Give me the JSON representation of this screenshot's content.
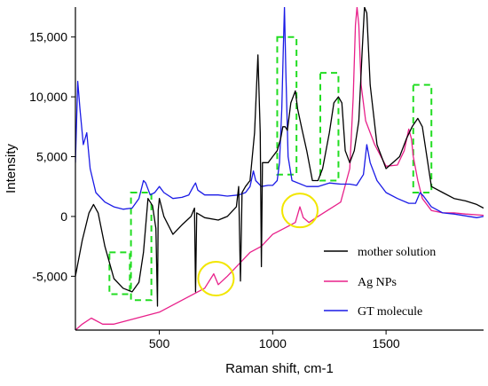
{
  "chart_data": {
    "type": "line",
    "xlabel": "Raman shift, cm-1",
    "ylabel": "Intensity",
    "xlim": [
      130,
      1930
    ],
    "ylim": [
      -9500,
      17500
    ],
    "x_ticks": [
      500,
      1000,
      1500
    ],
    "x_tick_labels": [
      "500",
      "1000",
      "1500"
    ],
    "y_ticks": [
      -5000,
      0,
      5000,
      10000,
      15000
    ],
    "y_tick_labels": [
      "-5,000",
      "0",
      "5,000",
      "10,000",
      "15,000"
    ],
    "legend_position": "bottom-right",
    "series": [
      {
        "name": "mother solution",
        "color": "#000000",
        "points": [
          [
            130,
            -5000
          ],
          [
            160,
            -2000
          ],
          [
            190,
            300
          ],
          [
            210,
            1000
          ],
          [
            230,
            300
          ],
          [
            260,
            -2500
          ],
          [
            300,
            -5200
          ],
          [
            340,
            -6000
          ],
          [
            380,
            -6300
          ],
          [
            410,
            -5500
          ],
          [
            430,
            -3000
          ],
          [
            450,
            1500
          ],
          [
            470,
            900
          ],
          [
            485,
            -1000
          ],
          [
            492,
            -7500
          ],
          [
            495,
            500
          ],
          [
            500,
            1500
          ],
          [
            520,
            0
          ],
          [
            560,
            -1500
          ],
          [
            600,
            -700
          ],
          [
            640,
            0
          ],
          [
            655,
            700
          ],
          [
            660,
            -6300
          ],
          [
            665,
            300
          ],
          [
            700,
            -100
          ],
          [
            760,
            -300
          ],
          [
            800,
            0
          ],
          [
            840,
            800
          ],
          [
            850,
            2500
          ],
          [
            858,
            -5400
          ],
          [
            865,
            2000
          ],
          [
            880,
            2500
          ],
          [
            900,
            3000
          ],
          [
            920,
            7000
          ],
          [
            935,
            13500
          ],
          [
            945,
            7000
          ],
          [
            950,
            -4200
          ],
          [
            955,
            4500
          ],
          [
            980,
            4500
          ],
          [
            1000,
            5000
          ],
          [
            1020,
            5500
          ],
          [
            1035,
            6500
          ],
          [
            1045,
            7500
          ],
          [
            1055,
            7500
          ],
          [
            1065,
            7200
          ],
          [
            1080,
            9500
          ],
          [
            1100,
            10500
          ],
          [
            1110,
            9000
          ],
          [
            1130,
            7200
          ],
          [
            1150,
            5500
          ],
          [
            1175,
            3000
          ],
          [
            1200,
            3000
          ],
          [
            1220,
            4000
          ],
          [
            1250,
            7000
          ],
          [
            1270,
            9500
          ],
          [
            1290,
            10000
          ],
          [
            1305,
            9500
          ],
          [
            1320,
            5500
          ],
          [
            1340,
            4500
          ],
          [
            1360,
            5500
          ],
          [
            1380,
            8000
          ],
          [
            1395,
            14000
          ],
          [
            1405,
            17500
          ],
          [
            1415,
            17000
          ],
          [
            1430,
            11000
          ],
          [
            1460,
            6000
          ],
          [
            1500,
            4000
          ],
          [
            1530,
            4500
          ],
          [
            1560,
            5000
          ],
          [
            1590,
            6500
          ],
          [
            1615,
            7500
          ],
          [
            1640,
            8200
          ],
          [
            1660,
            7500
          ],
          [
            1680,
            5000
          ],
          [
            1700,
            2500
          ],
          [
            1750,
            2000
          ],
          [
            1800,
            1500
          ],
          [
            1850,
            1300
          ],
          [
            1900,
            1000
          ],
          [
            1930,
            700
          ]
        ]
      },
      {
        "name": "Ag NPs",
        "color": "#e8208a",
        "points": [
          [
            130,
            -9500
          ],
          [
            160,
            -9000
          ],
          [
            200,
            -8500
          ],
          [
            250,
            -9000
          ],
          [
            300,
            -9000
          ],
          [
            400,
            -8500
          ],
          [
            500,
            -8000
          ],
          [
            600,
            -7000
          ],
          [
            700,
            -6000
          ],
          [
            740,
            -4800
          ],
          [
            760,
            -5700
          ],
          [
            800,
            -5000
          ],
          [
            850,
            -4000
          ],
          [
            900,
            -3000
          ],
          [
            950,
            -2500
          ],
          [
            1000,
            -1500
          ],
          [
            1050,
            -1000
          ],
          [
            1100,
            -500
          ],
          [
            1120,
            800
          ],
          [
            1135,
            -100
          ],
          [
            1160,
            -500
          ],
          [
            1200,
            0
          ],
          [
            1250,
            600
          ],
          [
            1300,
            1200
          ],
          [
            1340,
            4000
          ],
          [
            1355,
            10000
          ],
          [
            1365,
            16000
          ],
          [
            1372,
            17500
          ],
          [
            1380,
            16000
          ],
          [
            1390,
            11000
          ],
          [
            1410,
            8000
          ],
          [
            1450,
            6000
          ],
          [
            1500,
            4200
          ],
          [
            1550,
            4300
          ],
          [
            1580,
            5500
          ],
          [
            1600,
            7300
          ],
          [
            1612,
            6500
          ],
          [
            1620,
            5000
          ],
          [
            1640,
            3000
          ],
          [
            1660,
            1500
          ],
          [
            1700,
            500
          ],
          [
            1750,
            300
          ],
          [
            1800,
            300
          ],
          [
            1850,
            200
          ],
          [
            1930,
            100
          ]
        ]
      },
      {
        "name": "GT molecule",
        "color": "#1a1ae6",
        "points": [
          [
            130,
            4500
          ],
          [
            140,
            11300
          ],
          [
            150,
            9000
          ],
          [
            165,
            6000
          ],
          [
            180,
            7000
          ],
          [
            195,
            4000
          ],
          [
            220,
            2000
          ],
          [
            260,
            1200
          ],
          [
            300,
            800
          ],
          [
            340,
            600
          ],
          [
            380,
            700
          ],
          [
            410,
            1500
          ],
          [
            430,
            3000
          ],
          [
            440,
            2800
          ],
          [
            460,
            1800
          ],
          [
            480,
            2000
          ],
          [
            500,
            2500
          ],
          [
            520,
            2000
          ],
          [
            560,
            1500
          ],
          [
            600,
            1600
          ],
          [
            630,
            1800
          ],
          [
            650,
            2500
          ],
          [
            660,
            2800
          ],
          [
            670,
            2200
          ],
          [
            700,
            1800
          ],
          [
            760,
            1800
          ],
          [
            800,
            1700
          ],
          [
            850,
            1800
          ],
          [
            880,
            2000
          ],
          [
            900,
            2500
          ],
          [
            915,
            3800
          ],
          [
            925,
            3000
          ],
          [
            950,
            2500
          ],
          [
            980,
            2600
          ],
          [
            1000,
            2600
          ],
          [
            1020,
            3000
          ],
          [
            1030,
            4500
          ],
          [
            1040,
            9000
          ],
          [
            1047,
            14000
          ],
          [
            1052,
            17500
          ],
          [
            1058,
            12000
          ],
          [
            1068,
            5000
          ],
          [
            1085,
            3000
          ],
          [
            1150,
            2500
          ],
          [
            1200,
            2500
          ],
          [
            1250,
            2800
          ],
          [
            1300,
            2700
          ],
          [
            1340,
            2700
          ],
          [
            1370,
            2600
          ],
          [
            1400,
            3500
          ],
          [
            1415,
            6000
          ],
          [
            1430,
            4500
          ],
          [
            1460,
            3000
          ],
          [
            1500,
            2000
          ],
          [
            1550,
            1500
          ],
          [
            1600,
            1100
          ],
          [
            1630,
            1100
          ],
          [
            1650,
            2000
          ],
          [
            1665,
            1700
          ],
          [
            1700,
            800
          ],
          [
            1750,
            300
          ],
          [
            1800,
            200
          ],
          [
            1900,
            -100
          ],
          [
            1930,
            0
          ]
        ]
      }
    ],
    "annotations": {
      "dashed_boxes": [
        {
          "x": [
            280,
            370
          ],
          "y": [
            -6500,
            -3000
          ]
        },
        {
          "x": [
            375,
            465
          ],
          "y": [
            -7000,
            2000
          ]
        },
        {
          "x": [
            1020,
            1105
          ],
          "y": [
            3500,
            15000
          ]
        },
        {
          "x": [
            1210,
            1290
          ],
          "y": [
            3000,
            12000
          ]
        },
        {
          "x": [
            1620,
            1700
          ],
          "y": [
            2000,
            11000
          ]
        }
      ],
      "dashed_box_color": "#22dd22",
      "circles": [
        {
          "cx": 750,
          "cy": -5200
        },
        {
          "cx": 1120,
          "cy": 500
        }
      ],
      "circle_color": "#f2e600"
    }
  }
}
